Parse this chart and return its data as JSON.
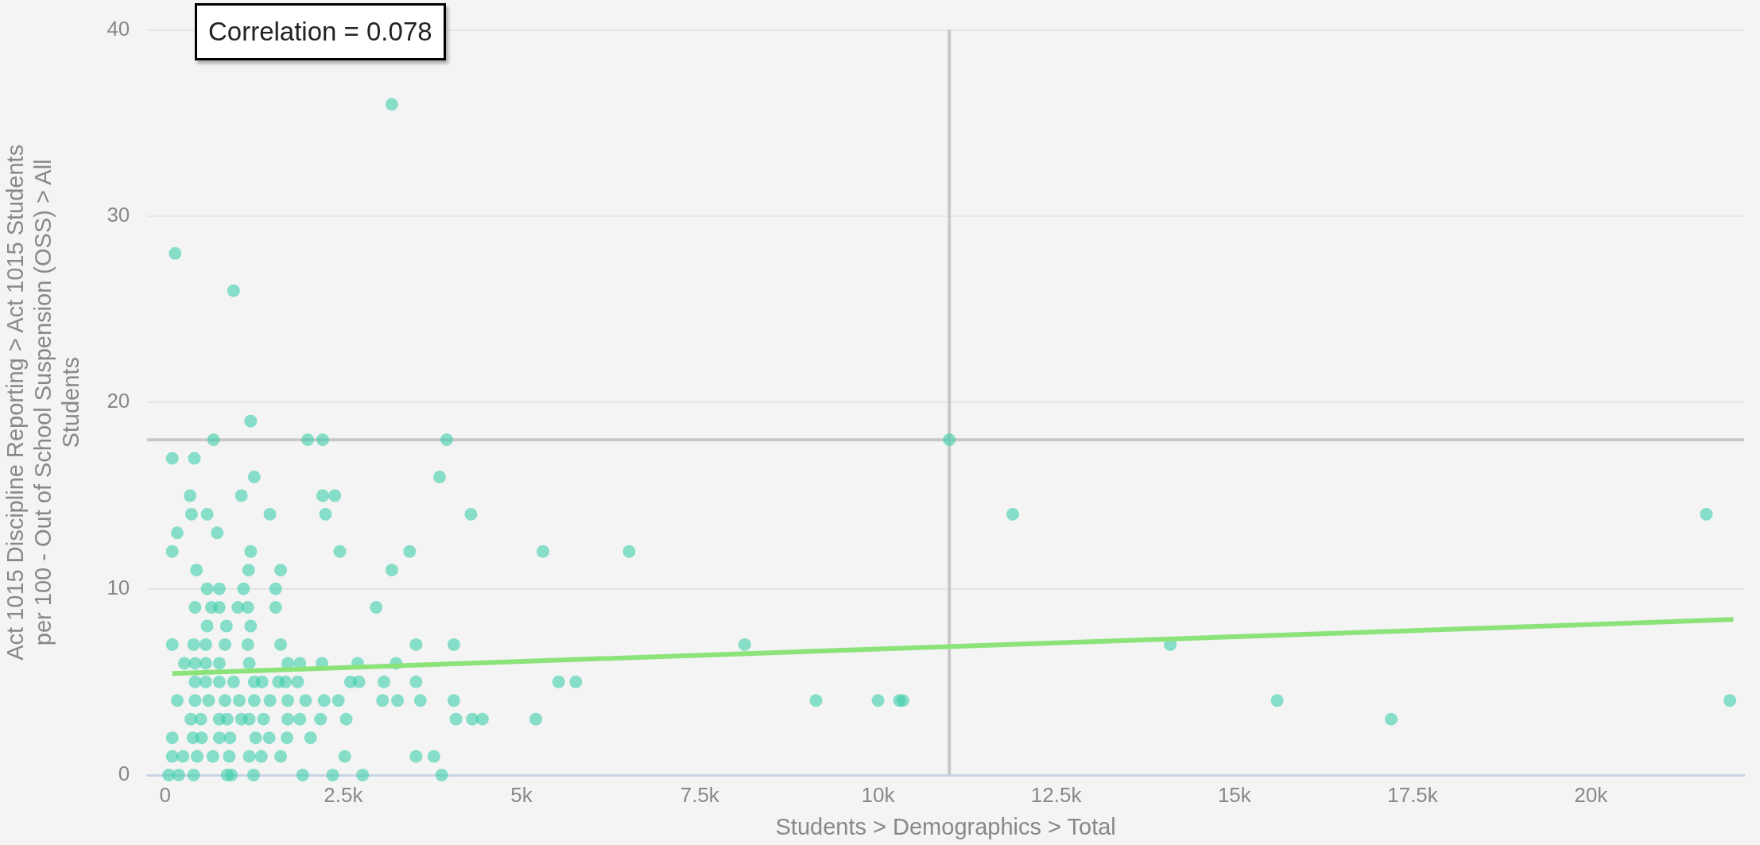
{
  "chart_data": {
    "type": "scatter",
    "xlabel": "Students > Demographics > Total",
    "ylabel": "Act 1015 Discipline Reporting > Act 1015 Students per 100 - Out of School Suspension (OSS) > All Students",
    "annotations": [
      "Correlation = 0.078"
    ],
    "xlim": [
      -250,
      22150
    ],
    "ylim": [
      0,
      40
    ],
    "xticks": [
      {
        "value": 0,
        "label": "0"
      },
      {
        "value": 2500,
        "label": "2.5k"
      },
      {
        "value": 5000,
        "label": "5k"
      },
      {
        "value": 7500,
        "label": "7.5k"
      },
      {
        "value": 10000,
        "label": "10k"
      },
      {
        "value": 12500,
        "label": "12.5k"
      },
      {
        "value": 15000,
        "label": "15k"
      },
      {
        "value": 17500,
        "label": "17.5k"
      },
      {
        "value": 20000,
        "label": "20k"
      }
    ],
    "yticks": [
      0,
      10,
      20,
      30,
      40
    ],
    "grid": "y",
    "ref_lines": [
      {
        "axis": "x",
        "value": 11000,
        "color": "#c8c8c8"
      },
      {
        "axis": "y",
        "value": 18,
        "color": "#c8c8c8"
      }
    ],
    "series": [
      {
        "color": "#3ccfaa",
        "marker": "circle",
        "x": [
          50,
          190,
          400,
          870,
          930,
          1240,
          1930,
          2350,
          2770,
          3880,
          100,
          250,
          450,
          670,
          900,
          1180,
          1350,
          1620,
          2520,
          3520,
          3770,
          100,
          390,
          510,
          760,
          910,
          1270,
          1460,
          1710,
          2040,
          360,
          500,
          760,
          870,
          1070,
          1180,
          1380,
          1720,
          1890,
          2180,
          2540,
          4080,
          4310,
          4450,
          5200,
          17200,
          170,
          420,
          610,
          840,
          1040,
          1250,
          1470,
          1720,
          1970,
          2230,
          2430,
          3050,
          3260,
          3580,
          4050,
          9130,
          10000,
          10300,
          10350,
          15600,
          21950,
          420,
          570,
          760,
          960,
          1250,
          1360,
          1590,
          1690,
          1860,
          2600,
          2720,
          3070,
          3520,
          5520,
          5760,
          270,
          420,
          570,
          760,
          1180,
          1720,
          1890,
          2200,
          2700,
          3240,
          100,
          400,
          570,
          840,
          1160,
          1620,
          3520,
          4050,
          8130,
          14100,
          590,
          860,
          1200,
          420,
          650,
          760,
          1020,
          1160,
          1550,
          2960,
          590,
          760,
          1100,
          1550,
          440,
          1170,
          1620,
          3180,
          100,
          1200,
          2450,
          3430,
          5300,
          6510,
          170,
          730,
          370,
          590,
          1470,
          2250,
          4290,
          11890,
          21620,
          350,
          1070,
          2210,
          2380,
          1250,
          3850,
          100,
          410,
          680,
          2000,
          2210,
          3950,
          11000,
          1200,
          960,
          140,
          3180
        ],
        "values": [
          0,
          0,
          0,
          0,
          0,
          0,
          0,
          0,
          0,
          0,
          1,
          1,
          1,
          1,
          1,
          1,
          1,
          1,
          1,
          1,
          1,
          2,
          2,
          2,
          2,
          2,
          2,
          2,
          2,
          2,
          3,
          3,
          3,
          3,
          3,
          3,
          3,
          3,
          3,
          3,
          3,
          3,
          3,
          3,
          3,
          3,
          4,
          4,
          4,
          4,
          4,
          4,
          4,
          4,
          4,
          4,
          4,
          4,
          4,
          4,
          4,
          4,
          4,
          4,
          4,
          4,
          4,
          5,
          5,
          5,
          5,
          5,
          5,
          5,
          5,
          5,
          5,
          5,
          5,
          5,
          5,
          5,
          6,
          6,
          6,
          6,
          6,
          6,
          6,
          6,
          6,
          6,
          7,
          7,
          7,
          7,
          7,
          7,
          7,
          7,
          7,
          7,
          8,
          8,
          8,
          9,
          9,
          9,
          9,
          9,
          9,
          9,
          10,
          10,
          10,
          10,
          11,
          11,
          11,
          11,
          12,
          12,
          12,
          12,
          12,
          12,
          13,
          13,
          14,
          14,
          14,
          14,
          14,
          14,
          14,
          15,
          15,
          15,
          15,
          16,
          16,
          17,
          17,
          18,
          18,
          18,
          18,
          18,
          19,
          26,
          28,
          36
        ]
      },
      {
        "type": "line",
        "color": "#8be37a",
        "x": [
          100,
          22000
        ],
        "values": [
          5.45,
          8.35
        ]
      }
    ]
  }
}
